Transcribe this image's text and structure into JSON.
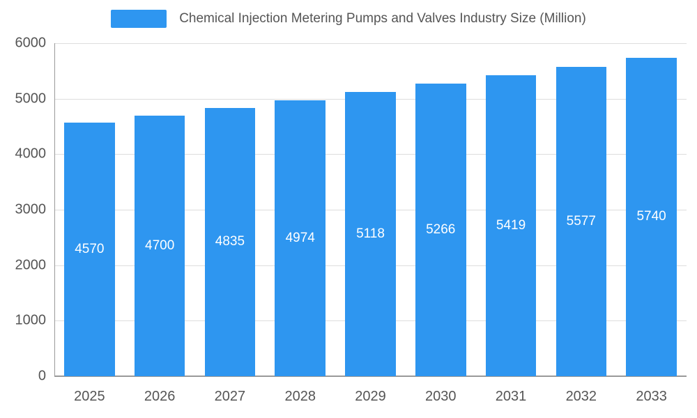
{
  "chart_data": {
    "type": "bar",
    "title": "Chemical Injection Metering Pumps and Valves Industry Size (Million)",
    "categories": [
      "2025",
      "2026",
      "2027",
      "2028",
      "2029",
      "2030",
      "2031",
      "2032",
      "2033"
    ],
    "values": [
      4570,
      4700,
      4835,
      4974,
      5118,
      5266,
      5419,
      5577,
      5740
    ],
    "value_labels": [
      "4570",
      "4700",
      "4835",
      "4974",
      "5118",
      "5266",
      "5419",
      "5577",
      "5740"
    ],
    "xlabel": "",
    "ylabel": "",
    "ylim": [
      0,
      6000
    ],
    "yticks": [
      0,
      1000,
      2000,
      3000,
      4000,
      5000,
      6000
    ],
    "grid": true,
    "legend_position": "top",
    "bar_color": "#2E96F0",
    "bar_label_color": "#ffffff",
    "axis_text_color": "#555555",
    "gridline_color": "#dddddd"
  }
}
